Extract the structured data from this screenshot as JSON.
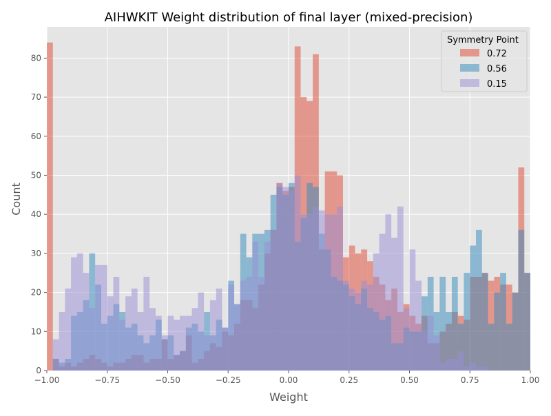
{
  "chart_data": {
    "type": "bar",
    "title": "AIHWKIT Weight distribution of final layer (mixed-precision)",
    "xlabel": "Weight",
    "ylabel": "Count",
    "xlim": [
      -1.0,
      1.0
    ],
    "ylim": [
      0,
      88
    ],
    "bin_width": 0.025,
    "xticks": [
      -1.0,
      -0.75,
      -0.5,
      -0.25,
      0.0,
      0.25,
      0.5,
      0.75,
      1.0
    ],
    "xtick_labels": [
      "−1.00",
      "−0.75",
      "−0.50",
      "−0.25",
      "0.00",
      "0.25",
      "0.50",
      "0.75",
      "1.00"
    ],
    "yticks": [
      0,
      10,
      20,
      30,
      40,
      50,
      60,
      70,
      80
    ],
    "yticks_labels": [
      "0",
      "10",
      "20",
      "30",
      "40",
      "50",
      "60",
      "70",
      "80"
    ],
    "grid": true,
    "legend": {
      "title": "Symmetry Point",
      "placement": "upper right"
    },
    "x": [
      -0.9875,
      -0.9625,
      -0.9375,
      -0.9125,
      -0.8875,
      -0.8625,
      -0.8375,
      -0.8125,
      -0.7875,
      -0.7625,
      -0.7375,
      -0.7125,
      -0.6875,
      -0.6625,
      -0.6375,
      -0.6125,
      -0.5875,
      -0.5625,
      -0.5375,
      -0.5125,
      -0.4875,
      -0.4625,
      -0.4375,
      -0.4125,
      -0.3875,
      -0.3625,
      -0.3375,
      -0.3125,
      -0.2875,
      -0.2625,
      -0.2375,
      -0.2125,
      -0.1875,
      -0.1625,
      -0.1375,
      -0.1125,
      -0.0875,
      -0.0625,
      -0.0375,
      -0.0125,
      0.0125,
      0.0375,
      0.0625,
      0.0875,
      0.1125,
      0.1375,
      0.1625,
      0.1875,
      0.2125,
      0.2375,
      0.2625,
      0.2875,
      0.3125,
      0.3375,
      0.3625,
      0.3875,
      0.4125,
      0.4375,
      0.4625,
      0.4875,
      0.5125,
      0.5375,
      0.5625,
      0.5875,
      0.6125,
      0.6375,
      0.6625,
      0.6875,
      0.7125,
      0.7375,
      0.7625,
      0.7875,
      0.8125,
      0.8375,
      0.8625,
      0.8875,
      0.9125,
      0.9375,
      0.9625,
      0.9875
    ],
    "series": [
      {
        "name": "0.72",
        "color": "#E24A33",
        "values": [
          84,
          3,
          1,
          2,
          1,
          2,
          3,
          4,
          3,
          2,
          1,
          2,
          2,
          3,
          4,
          4,
          2,
          3,
          3,
          8,
          3,
          4,
          5,
          9,
          2,
          3,
          5,
          7,
          6,
          10,
          9,
          12,
          18,
          18,
          16,
          22,
          30,
          36,
          48,
          46,
          47,
          83,
          70,
          69,
          81,
          31,
          51,
          51,
          50,
          29,
          32,
          30,
          31,
          28,
          24,
          22,
          18,
          21,
          15,
          17,
          14,
          12,
          14,
          7,
          7,
          10,
          12,
          15,
          14,
          13,
          24,
          24,
          25,
          23,
          24,
          22,
          22,
          20,
          52,
          25
        ]
      },
      {
        "name": "0.56",
        "color": "#348ABD",
        "values": [
          0,
          3,
          2,
          3,
          14,
          15,
          18,
          30,
          22,
          12,
          14,
          17,
          15,
          11,
          12,
          9,
          7,
          9,
          13,
          8,
          9,
          4,
          5,
          11,
          12,
          10,
          15,
          9,
          13,
          11,
          23,
          17,
          35,
          29,
          35,
          35,
          36,
          45,
          47,
          45,
          48,
          33,
          39,
          48,
          47,
          35,
          31,
          24,
          23,
          22,
          19,
          17,
          21,
          16,
          15,
          13,
          14,
          7,
          7,
          11,
          10,
          10,
          19,
          24,
          15,
          24,
          15,
          24,
          12,
          25,
          32,
          36,
          25,
          12,
          20,
          25,
          12,
          20,
          36,
          25
        ]
      },
      {
        "name": "0.15",
        "color": "#988ED5",
        "values": [
          0,
          8,
          15,
          21,
          29,
          30,
          25,
          16,
          27,
          27,
          19,
          24,
          13,
          19,
          21,
          15,
          24,
          16,
          14,
          9,
          14,
          13,
          14,
          14,
          16,
          20,
          9,
          18,
          21,
          11,
          22,
          17,
          23,
          24,
          33,
          24,
          33,
          36,
          48,
          47,
          46,
          50,
          40,
          40,
          42,
          41,
          40,
          40,
          42,
          23,
          21,
          20,
          23,
          22,
          30,
          35,
          40,
          34,
          42,
          16,
          31,
          23,
          10,
          14,
          9,
          2,
          3,
          3,
          5,
          1,
          2,
          1,
          1,
          0,
          0,
          0,
          0,
          0,
          0,
          0
        ]
      }
    ]
  }
}
